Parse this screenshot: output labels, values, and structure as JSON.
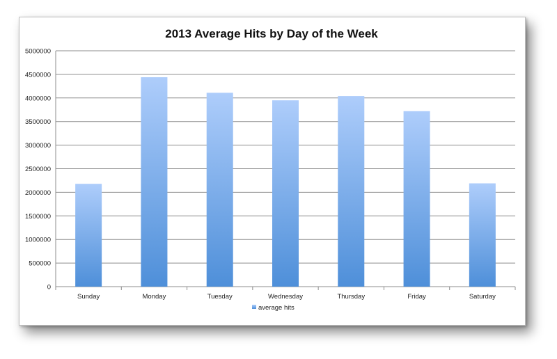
{
  "chart_data": {
    "type": "bar",
    "title": "2013 Average Hits by Day of the Week",
    "categories": [
      "Sunday",
      "Monday",
      "Tuesday",
      "Wednesday",
      "Thursday",
      "Friday",
      "Saturday"
    ],
    "series": [
      {
        "name": "average hits",
        "values": [
          2180000,
          4440000,
          4110000,
          3950000,
          4040000,
          3720000,
          2190000
        ]
      }
    ],
    "xlabel": "",
    "ylabel": "",
    "ylim": [
      0,
      5000000
    ],
    "yticks": [
      "0",
      "500000",
      "1000000",
      "1500000",
      "2000000",
      "2500000",
      "3000000",
      "3500000",
      "4000000",
      "4500000",
      "5000000"
    ],
    "grid": true,
    "legend_position": "bottom",
    "colors": {
      "bar_top": "#aecdfb",
      "bar_bottom": "#4e8fd9",
      "grid": "#8c8c8c",
      "axis": "#8c8c8c"
    }
  }
}
